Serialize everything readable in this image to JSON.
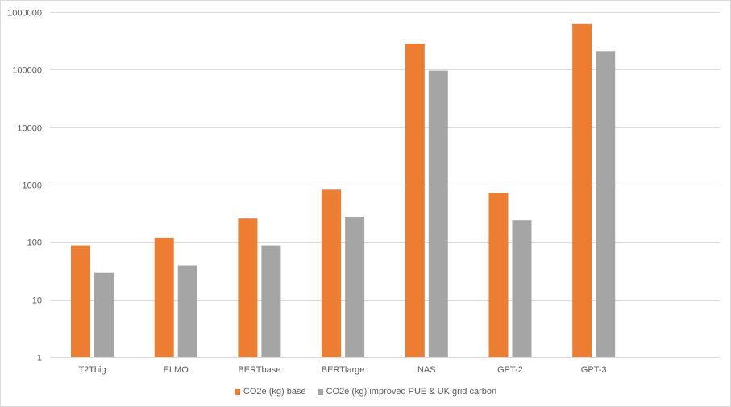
{
  "chart_data": {
    "type": "bar",
    "y_scale": "log",
    "ylim": [
      1,
      1000000
    ],
    "y_ticks": [
      "1",
      "10",
      "100",
      "1000",
      "10000",
      "100000",
      "1000000"
    ],
    "grid": true,
    "legend_position": "bottom",
    "categories": [
      "T2Tbig",
      "ELMO",
      "BERTbase",
      "BERTlarge",
      "NAS",
      "GPT-2",
      "GPT-3"
    ],
    "series": [
      {
        "name": "CO2e (kg) base",
        "color": "#ed7d31",
        "values": [
          87,
          119,
          256,
          815,
          284000,
          710,
          621000
        ]
      },
      {
        "name": "CO2e (kg) improved PUE & UK grid carbon",
        "color": "#a5a5a5",
        "values": [
          29,
          39,
          87,
          275,
          96000,
          240,
          210000
        ]
      }
    ]
  }
}
